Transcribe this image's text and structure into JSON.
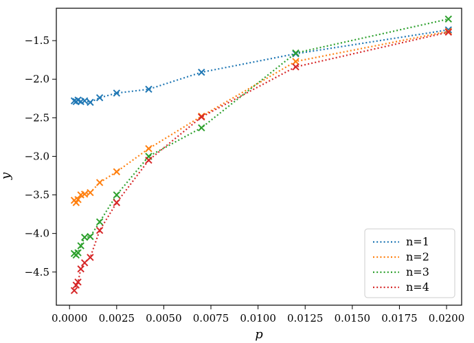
{
  "chart_data": {
    "type": "line",
    "xlabel": "p",
    "ylabel": "y",
    "xlim": [
      -0.0007,
      0.0208
    ],
    "ylim": [
      -4.93,
      -1.08
    ],
    "xticks": [
      0.0,
      0.0025,
      0.005,
      0.0075,
      0.01,
      0.0125,
      0.015,
      0.0175,
      0.02
    ],
    "xtick_labels": [
      "0.0000",
      "0.0025",
      "0.0050",
      "0.0075",
      "0.0100",
      "0.0125",
      "0.0150",
      "0.0175",
      "0.0200"
    ],
    "yticks": [
      -1.5,
      -2.0,
      -2.5,
      -3.0,
      -3.5,
      -4.0,
      -4.5
    ],
    "ytick_labels": [
      "−1.5",
      "−2.0",
      "−2.5",
      "−3.0",
      "−3.5",
      "−4.0",
      "−4.5"
    ],
    "grid": false,
    "legend_position": "lower-right",
    "line_style": "dotted",
    "marker": "x",
    "series": [
      {
        "name": "n=1",
        "color": "#1f77b4",
        "x": [
          0.00025,
          0.00035,
          0.00045,
          0.0006,
          0.0008,
          0.0011,
          0.0016,
          0.0025,
          0.0042,
          0.007,
          0.012,
          0.0201
        ],
        "y": [
          -2.28,
          -2.29,
          -2.27,
          -2.29,
          -2.28,
          -2.3,
          -2.24,
          -2.18,
          -2.13,
          -1.91,
          -1.67,
          -1.36
        ]
      },
      {
        "name": "n=2",
        "color": "#ff7f0e",
        "x": [
          0.00025,
          0.00035,
          0.00045,
          0.0006,
          0.0008,
          0.0011,
          0.0016,
          0.0025,
          0.0042,
          0.007,
          0.012,
          0.0201
        ],
        "y": [
          -3.57,
          -3.6,
          -3.56,
          -3.5,
          -3.49,
          -3.47,
          -3.34,
          -3.2,
          -2.9,
          -2.48,
          -1.77,
          -1.38
        ]
      },
      {
        "name": "n=3",
        "color": "#2ca02c",
        "x": [
          0.00025,
          0.00035,
          0.00045,
          0.0006,
          0.0008,
          0.0011,
          0.0016,
          0.0025,
          0.0042,
          0.007,
          0.012,
          0.0201
        ],
        "y": [
          -4.26,
          -4.28,
          -4.25,
          -4.16,
          -4.05,
          -4.04,
          -3.85,
          -3.5,
          -3.0,
          -2.63,
          -1.66,
          -1.22
        ]
      },
      {
        "name": "n=4",
        "color": "#d62728",
        "x": [
          0.00025,
          0.00035,
          0.00045,
          0.0006,
          0.0008,
          0.0011,
          0.0016,
          0.0025,
          0.0042,
          0.007,
          0.012,
          0.0201
        ],
        "y": [
          -4.74,
          -4.67,
          -4.63,
          -4.46,
          -4.38,
          -4.31,
          -3.96,
          -3.6,
          -3.05,
          -2.49,
          -1.84,
          -1.39
        ]
      }
    ]
  }
}
